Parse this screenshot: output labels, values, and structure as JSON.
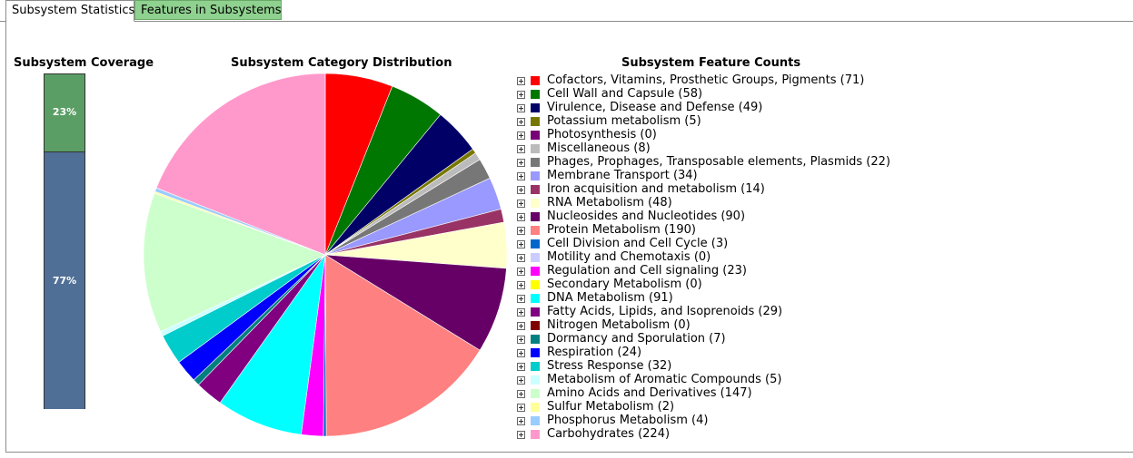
{
  "tabs": [
    {
      "label": "Subsystem Statistics",
      "active": true
    },
    {
      "label": "Features in Subsystems",
      "active": false
    }
  ],
  "coverage": {
    "title": "Subsystem Coverage",
    "segments": [
      {
        "label": "23%",
        "value": 23,
        "color": "#5a9e65"
      },
      {
        "label": "77%",
        "value": 77,
        "color": "#506f96"
      }
    ]
  },
  "distribution": {
    "title": "Subsystem Category Distribution"
  },
  "feature_counts": {
    "title": "Subsystem Feature Counts",
    "items": [
      {
        "label": "Cofactors, Vitamins, Prosthetic Groups, Pigments (71)",
        "count": 71,
        "color": "#ff0000"
      },
      {
        "label": "Cell Wall and Capsule (58)",
        "count": 58,
        "color": "#007700"
      },
      {
        "label": "Virulence, Disease and Defense (49)",
        "count": 49,
        "color": "#000066"
      },
      {
        "label": "Potassium metabolism (5)",
        "count": 5,
        "color": "#777700"
      },
      {
        "label": "Photosynthesis (0)",
        "count": 0,
        "color": "#770077"
      },
      {
        "label": "Miscellaneous (8)",
        "count": 8,
        "color": "#bbbbbb"
      },
      {
        "label": "Phages, Prophages, Transposable elements, Plasmids (22)",
        "count": 22,
        "color": "#777777"
      },
      {
        "label": "Membrane Transport (34)",
        "count": 34,
        "color": "#9999ff"
      },
      {
        "label": "Iron acquisition and metabolism (14)",
        "count": 14,
        "color": "#993366"
      },
      {
        "label": "RNA Metabolism (48)",
        "count": 48,
        "color": "#ffffcc"
      },
      {
        "label": "Nucleosides and Nucleotides (90)",
        "count": 90,
        "color": "#660066"
      },
      {
        "label": "Protein Metabolism (190)",
        "count": 190,
        "color": "#ff8080"
      },
      {
        "label": "Cell Division and Cell Cycle (3)",
        "count": 3,
        "color": "#0066cc"
      },
      {
        "label": "Motility and Chemotaxis (0)",
        "count": 0,
        "color": "#ccccff"
      },
      {
        "label": "Regulation and Cell signaling (23)",
        "count": 23,
        "color": "#ff00ff"
      },
      {
        "label": "Secondary Metabolism (0)",
        "count": 0,
        "color": "#ffff00"
      },
      {
        "label": "DNA Metabolism (91)",
        "count": 91,
        "color": "#00ffff"
      },
      {
        "label": "Fatty Acids, Lipids, and Isoprenoids (29)",
        "count": 29,
        "color": "#800080"
      },
      {
        "label": "Nitrogen Metabolism (0)",
        "count": 0,
        "color": "#800000"
      },
      {
        "label": "Dormancy and Sporulation (7)",
        "count": 7,
        "color": "#008080"
      },
      {
        "label": "Respiration (24)",
        "count": 24,
        "color": "#0000ff"
      },
      {
        "label": "Stress Response (32)",
        "count": 32,
        "color": "#00cccc"
      },
      {
        "label": "Metabolism of Aromatic Compounds (5)",
        "count": 5,
        "color": "#ccffff"
      },
      {
        "label": "Amino Acids and Derivatives (147)",
        "count": 147,
        "color": "#ccffcc"
      },
      {
        "label": "Sulfur Metabolism (2)",
        "count": 2,
        "color": "#ffff99"
      },
      {
        "label": "Phosphorus Metabolism (4)",
        "count": 4,
        "color": "#99ccff"
      },
      {
        "label": "Carbohydrates (224)",
        "count": 224,
        "color": "#ff99cc"
      }
    ]
  }
}
